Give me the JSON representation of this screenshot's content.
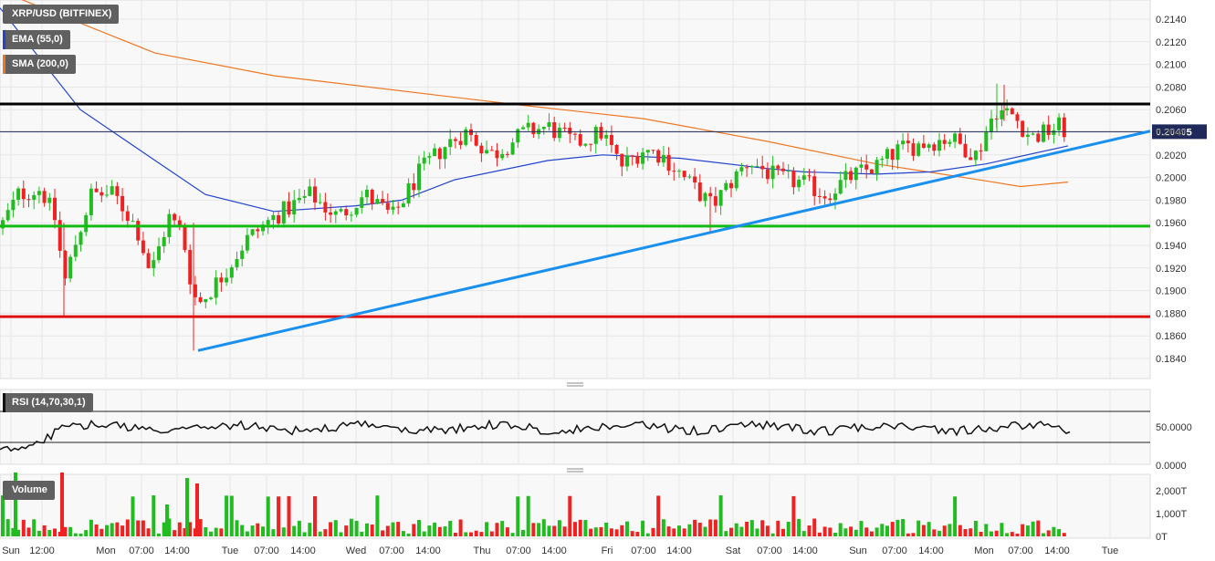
{
  "legend": {
    "symbol": "XRP/USD (BITFINEX)",
    "ema": "EMA (55,0)",
    "sma": "SMA (200,0)",
    "rsi": "RSI (14,70,30,1)",
    "volume": "Volume"
  },
  "price_axis": {
    "ticks": [
      "0.2140",
      "0.2120",
      "0.2100",
      "0.2080",
      "0.2060",
      "0.2040",
      "0.2020",
      "0.2000",
      "0.1980",
      "0.1960",
      "0.1940",
      "0.1920",
      "0.1900",
      "0.1880",
      "0.1860",
      "0.1840"
    ],
    "current_price": "0.20405"
  },
  "rsi_axis": {
    "ticks": [
      "50.0000",
      "0.0000"
    ]
  },
  "volume_axis": {
    "ticks": [
      "2,000T",
      "1,000T",
      "0T"
    ]
  },
  "time_axis": {
    "labels": [
      "Sun",
      "12:00",
      "Mon",
      "07:00",
      "14:00",
      "Tue",
      "07:00",
      "14:00",
      "Wed",
      "07:00",
      "14:00",
      "Thu",
      "07:00",
      "14:00",
      "Fri",
      "07:00",
      "14:00",
      "Sat",
      "07:00",
      "14:00",
      "Sun",
      "07:00",
      "14:00",
      "Mon",
      "07:00",
      "14:00",
      "Tue"
    ]
  },
  "colors": {
    "up": "#22bb22",
    "down": "#ee2222",
    "ema": "#2244cc",
    "sma": "#ee7722",
    "resistance": "#000000",
    "support": "#11bb11",
    "low_line": "#dd1111",
    "trendline": "#1a90ee"
  },
  "chart_data": {
    "type": "candlestick",
    "title": "XRP/USD (BITFINEX)",
    "y_range": [
      0.183,
      0.215
    ],
    "current_price": 0.20405,
    "horizontal_levels": [
      {
        "value": 0.2065,
        "color": "black"
      },
      {
        "value": 0.1957,
        "color": "green"
      },
      {
        "value": 0.1877,
        "color": "red"
      }
    ],
    "trendline_points": [
      {
        "x": "Mon 17:00",
        "y": 0.1847
      },
      {
        "x": "Tue 18:00 (next)",
        "y": 0.204
      }
    ],
    "ema_55_approx": [
      [
        "Sun 00:00",
        0.215
      ],
      [
        "Mon 00:00",
        0.206
      ],
      [
        "Mon 14:00",
        0.2015
      ],
      [
        "Tue 00:00",
        0.1985
      ],
      [
        "Tue 14:00",
        0.197
      ],
      [
        "Wed 07:00",
        0.1975
      ],
      [
        "Wed 14:00",
        0.198
      ],
      [
        "Thu 00:00",
        0.1998
      ],
      [
        "Thu 14:00",
        0.2015
      ],
      [
        "Fri 00:00",
        0.202
      ],
      [
        "Fri 14:00",
        0.2017
      ],
      [
        "Sat 07:00",
        0.2008
      ],
      [
        "Sat 14:00",
        0.2005
      ],
      [
        "Sun 07:00",
        0.2003
      ],
      [
        "Sun 14:00",
        0.2005
      ],
      [
        "Mon 00:00",
        0.2012
      ],
      [
        "Mon 14:00",
        0.2028
      ]
    ],
    "sma_200_approx": [
      [
        "Sun 00:00",
        0.2165
      ],
      [
        "Mon 14:00",
        0.211
      ],
      [
        "Tue 14:00",
        0.209
      ],
      [
        "Thu 07:00",
        0.2065
      ],
      [
        "Fri 07:00",
        0.2052
      ],
      [
        "Sat 07:00",
        0.2032
      ],
      [
        "Sun 07:00",
        0.2012
      ],
      [
        "Mon 00:00",
        0.1997
      ],
      [
        "Mon 07:00",
        0.1992
      ],
      [
        "Mon 14:00",
        0.1996
      ]
    ]
  }
}
